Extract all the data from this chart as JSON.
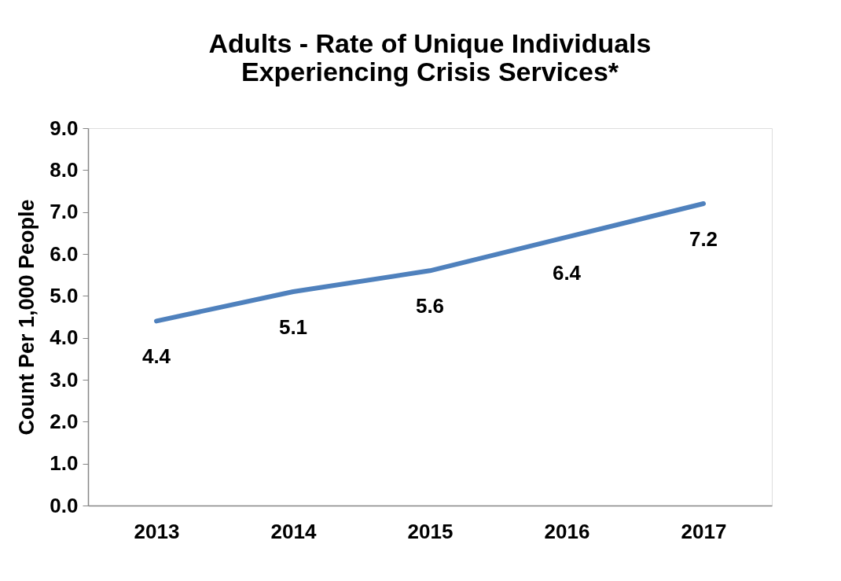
{
  "chart_data": {
    "type": "line",
    "title": [
      "Adults - Rate of Unique Individuals",
      "Experiencing Crisis Services*"
    ],
    "ylabel": "Count Per 1,000 People",
    "categories": [
      "2013",
      "2014",
      "2015",
      "2016",
      "2017"
    ],
    "series": [
      {
        "color": "#4f81bd",
        "values": [
          4.4,
          5.1,
          5.6,
          6.4,
          7.2
        ]
      }
    ],
    "ylim": [
      0,
      9
    ],
    "yticks": [
      {
        "value": 0,
        "label": "0.0"
      },
      {
        "value": 1,
        "label": "1.0"
      },
      {
        "value": 2,
        "label": "2.0"
      },
      {
        "value": 3,
        "label": "3.0"
      },
      {
        "value": 4,
        "label": "4.0"
      },
      {
        "value": 5,
        "label": "5.0"
      },
      {
        "value": 6,
        "label": "6.0"
      },
      {
        "value": 7,
        "label": "7.0"
      },
      {
        "value": 8,
        "label": "8.0"
      },
      {
        "value": 9,
        "label": "9.0"
      }
    ],
    "data_labels": true,
    "grid": false,
    "legend": false,
    "marker": "none",
    "line_style": "solid"
  }
}
